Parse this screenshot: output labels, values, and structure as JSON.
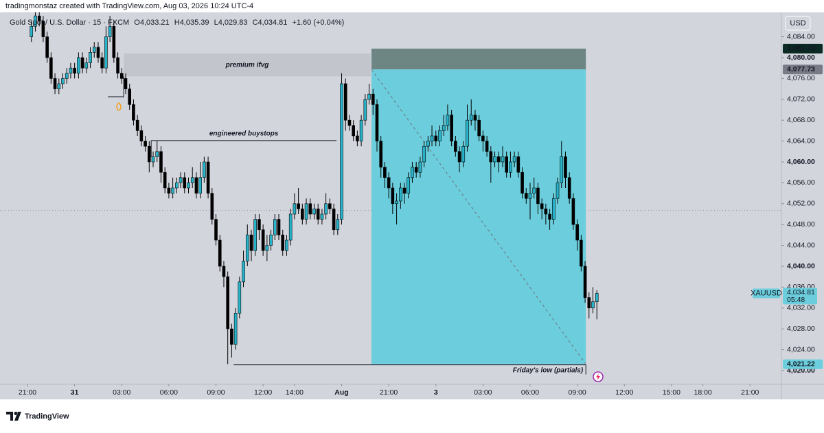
{
  "page": {
    "attribution": "tradingmonstaz created with TradingView.com, Aug 03, 2026 10:24 UTC-4",
    "symbol": "Gold Spot / U.S. Dollar · 15 · FXCM",
    "ohlc_legend": [
      [
        "O",
        "4,033.21"
      ],
      [
        "H",
        "4,035.39"
      ],
      [
        "L",
        "4,029.83"
      ],
      [
        "C",
        "4,034.81"
      ]
    ],
    "change": "+1.60 (+0.04%)",
    "currency": "USD",
    "logo": "TradingView"
  },
  "chart_data": {
    "type": "candlestick",
    "up_color": "#27b3c9",
    "down_color": "#000000",
    "grid": false,
    "xlim": [
      -8,
      191
    ],
    "xticks": [
      {
        "value": -1,
        "label": "21:00"
      },
      {
        "value": 11,
        "label": "31"
      },
      {
        "value": 23,
        "label": "03:00"
      },
      {
        "value": 35,
        "label": "06:00"
      },
      {
        "value": 47,
        "label": "09:00"
      },
      {
        "value": 59,
        "label": "12:00"
      },
      {
        "value": 67,
        "label": "14:00"
      },
      {
        "value": 79,
        "label": "Aug"
      },
      {
        "value": 91,
        "label": "21:00"
      },
      {
        "value": 103,
        "label": "3"
      },
      {
        "value": 115,
        "label": "03:00"
      },
      {
        "value": 127,
        "label": "06:00"
      },
      {
        "value": 139,
        "label": "09:00"
      },
      {
        "value": 151,
        "label": "12:00"
      },
      {
        "value": 163,
        "label": "15:00"
      },
      {
        "value": 171,
        "label": "18:00"
      },
      {
        "value": 183,
        "label": "21:00"
      }
    ],
    "ylim": [
      4017.37,
      4088.68
    ],
    "yticks": [
      {
        "value": 4084,
        "label": "4,084.00"
      },
      {
        "value": 4080,
        "label": "4,080.00"
      },
      {
        "value": 4076,
        "label": "4,076.00"
      },
      {
        "value": 4072,
        "label": "4,072.00"
      },
      {
        "value": 4068,
        "label": "4,068.00"
      },
      {
        "value": 4064,
        "label": "4,064.00"
      },
      {
        "value": 4060,
        "label": "4,060.00"
      },
      {
        "value": 4056,
        "label": "4,056.00"
      },
      {
        "value": 4052,
        "label": "4,052.00"
      },
      {
        "value": 4048,
        "label": "4,048.00"
      },
      {
        "value": 4044,
        "label": "4,044.00"
      },
      {
        "value": 4040,
        "label": "4,040.00"
      },
      {
        "value": 4036,
        "label": "4,036.00"
      },
      {
        "value": 4032,
        "label": "4,032.00"
      },
      {
        "value": 4028,
        "label": "4,028.00"
      },
      {
        "value": 4024,
        "label": "4,024.00"
      },
      {
        "value": 4020,
        "label": "4,020.00"
      }
    ],
    "open": [
      4084,
      4086,
      4088,
      4087,
      4084,
      4080,
      4076,
      4074,
      4075,
      4076,
      4077,
      4078,
      4077,
      4080,
      4078,
      4079,
      4081,
      4082,
      4080,
      4078,
      4084,
      4086,
      4080,
      4077,
      4076,
      4074,
      4071,
      4068,
      4066,
      4064,
      4063,
      4060,
      4061,
      4062,
      4058,
      4055,
      4054,
      4055,
      4056,
      4057,
      4055,
      4056,
      4057,
      4054,
      4057,
      4060,
      4054,
      4049,
      4045,
      4040,
      4038,
      4028,
      4025,
      4031,
      4037,
      4041,
      4046,
      4043,
      4049,
      4047,
      4043,
      4044,
      4046,
      4049,
      4046,
      4043,
      4045,
      4050,
      4052,
      4051,
      4049,
      4052,
      4050,
      4051,
      4049,
      4050,
      4052,
      4051,
      4047,
      4049,
      4075,
      4068,
      4067,
      4065,
      4064,
      4068,
      4072,
      4073,
      4071,
      4064,
      4059,
      4057,
      4055,
      4052,
      4052.5,
      4055,
      4054,
      4057,
      4059,
      4058,
      4060,
      4063,
      4064,
      4065,
      4064,
      4066,
      4067,
      4069,
      4064,
      4062,
      4060,
      4063,
      4068,
      4069,
      4068,
      4065,
      4064,
      4062,
      4060,
      4061,
      4060,
      4061,
      4058,
      4060,
      4061,
      4058,
      4054,
      4053,
      4054,
      4055,
      4052,
      4051,
      4050,
      4049,
      4053,
      4056,
      4061,
      4057,
      4053,
      4048,
      4045,
      4040,
      4034,
      4032,
      4033.21
    ],
    "high": [
      4087,
      4089,
      4089,
      4088,
      4085,
      4081,
      4077,
      4076,
      4077,
      4078,
      4079,
      4079,
      4081,
      4081,
      4080,
      4082,
      4083,
      4083,
      4081,
      4086,
      4088,
      4087,
      4081,
      4078,
      4077,
      4075,
      4072,
      4069,
      4067,
      4065,
      4064,
      4062,
      4064,
      4063,
      4059,
      4056,
      4057,
      4057,
      4058,
      4058,
      4057,
      4059,
      4058,
      4060,
      4061,
      4061,
      4055,
      4050,
      4046,
      4041,
      4039,
      4029,
      4032,
      4038,
      4043,
      4048,
      4047,
      4050,
      4050,
      4048,
      4046,
      4047,
      4050,
      4050,
      4047,
      4046,
      4051,
      4054,
      4055,
      4052,
      4053,
      4053,
      4052,
      4052,
      4051,
      4054,
      4053,
      4052,
      4050,
      4077,
      4076,
      4069,
      4068,
      4066,
      4069,
      4073,
      4075,
      4074,
      4072,
      4065,
      4060,
      4058,
      4056,
      4054,
      4056,
      4056,
      4058,
      4060,
      4060,
      4061,
      4064,
      4065,
      4067,
      4066,
      4067,
      4069,
      4071,
      4070,
      4065,
      4063,
      4064,
      4071,
      4072,
      4070,
      4069,
      4066,
      4065,
      4063,
      4062,
      4062,
      4063,
      4062,
      4062,
      4062,
      4062,
      4059,
      4055,
      4056,
      4057,
      4056,
      4053,
      4052,
      4051,
      4054,
      4057,
      4064,
      4062,
      4058,
      4054,
      4049,
      4046,
      4041,
      4035,
      4036,
      4035.39
    ],
    "low": [
      4083,
      4085,
      4086,
      4083,
      4079,
      4075,
      4073,
      4073,
      4074,
      4075,
      4076,
      4076,
      4076,
      4077,
      4077,
      4078,
      4080,
      4079,
      4077,
      4077,
      4083,
      4079,
      4076,
      4075,
      4073,
      4070,
      4067,
      4065,
      4063,
      4062,
      4058,
      4059,
      4060,
      4056,
      4054,
      4053,
      4053,
      4054,
      4055,
      4054,
      4054,
      4055,
      4053,
      4053,
      4056,
      4053,
      4048,
      4044,
      4039,
      4036,
      4021.22,
      4022.5,
      4024,
      4030,
      4036,
      4040,
      4041,
      4042,
      4045,
      4042,
      4041,
      4043,
      4045,
      4045,
      4042,
      4042,
      4044,
      4049,
      4050,
      4048,
      4048,
      4049,
      4049,
      4048,
      4048,
      4049,
      4050,
      4046,
      4046,
      4048,
      4066,
      4066,
      4064,
      4063,
      4063,
      4067,
      4071,
      4069,
      4062,
      4057,
      4055,
      4053,
      4050,
      4048,
      4051,
      4052,
      4053,
      4056,
      4057,
      4057,
      4059,
      4062,
      4063,
      4063,
      4063,
      4065,
      4066,
      4063,
      4061,
      4058,
      4059,
      4062,
      4067,
      4066,
      4064,
      4062,
      4061,
      4056,
      4059,
      4058,
      4059,
      4057,
      4057,
      4059,
      4057,
      4053,
      4052,
      4049,
      4053,
      4050,
      4049,
      4048,
      4047,
      4048,
      4052,
      4055,
      4055,
      4052,
      4047,
      4043,
      4039,
      4033,
      4030,
      4031,
      4029.83
    ],
    "close": [
      4086,
      4088,
      4087,
      4084,
      4080,
      4076,
      4074,
      4075,
      4076,
      4077,
      4078,
      4077,
      4080,
      4078,
      4079,
      4081,
      4082,
      4080,
      4078,
      4084,
      4086,
      4080,
      4077,
      4076,
      4074,
      4071,
      4068,
      4066,
      4064,
      4063,
      4060,
      4061,
      4062,
      4058,
      4055,
      4054,
      4055,
      4056,
      4057,
      4055,
      4056,
      4057,
      4054,
      4057,
      4060,
      4054,
      4049,
      4045,
      4040,
      4038,
      4028,
      4025,
      4031,
      4037,
      4041,
      4046,
      4043,
      4049,
      4047,
      4043,
      4044,
      4046,
      4049,
      4046,
      4043,
      4045,
      4050,
      4052,
      4051,
      4049,
      4052,
      4050,
      4051,
      4049,
      4050,
      4052,
      4051,
      4047,
      4049,
      4075,
      4068,
      4067,
      4065,
      4064,
      4068,
      4072,
      4073,
      4071,
      4064,
      4059,
      4057,
      4055,
      4052,
      4052.5,
      4055,
      4054,
      4057,
      4059,
      4058,
      4060,
      4063,
      4064,
      4065,
      4064,
      4066,
      4067,
      4069,
      4064,
      4062,
      4060,
      4063,
      4068,
      4069,
      4068,
      4065,
      4064,
      4062,
      4060,
      4061,
      4060,
      4061,
      4058,
      4060,
      4061,
      4058,
      4054,
      4053,
      4054,
      4055,
      4052,
      4051,
      4050,
      4049,
      4053,
      4056,
      4061,
      4057,
      4053,
      4048,
      4045,
      4040,
      4034,
      4032,
      4033.21,
      4034.81
    ],
    "reference_line": 4050.7,
    "zones": [
      {
        "label": "premium ifvg",
        "top": 4080.8,
        "bottom": 4076.4,
        "color": "#c3c5cd"
      }
    ],
    "levels": [
      {
        "label": "engineered buystops",
        "value": 4064.1
      },
      {
        "label": "Friday's low (partials)",
        "value": 4021.1
      }
    ],
    "position": {
      "stop": {
        "value": 4081.73,
        "label": "4,081.73"
      },
      "entry": {
        "value": 4077.73,
        "label": "4,077.73"
      },
      "target": {
        "value": 4021.22,
        "label": "4,021.22"
      },
      "stop_color": "#6d8684",
      "target_color": "#6ccedc"
    },
    "last_price": {
      "value": 4034.81,
      "label": "4,034.81",
      "symbol": "XAUUSD",
      "countdown": "05:48"
    }
  }
}
